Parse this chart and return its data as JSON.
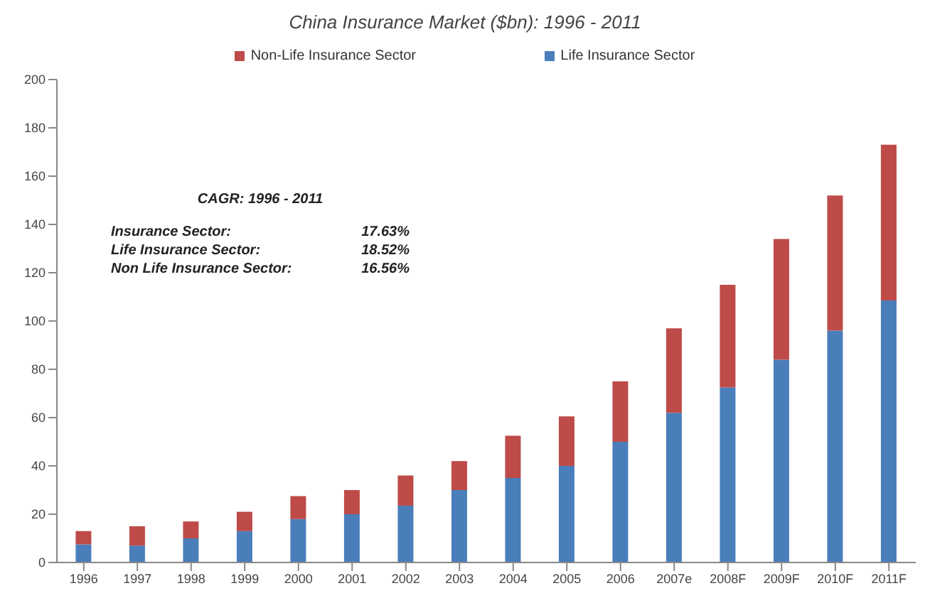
{
  "chart_data": {
    "type": "bar",
    "title": "China Insurance Market ($bn): 1996 - 2011",
    "categories": [
      "1996",
      "1997",
      "1998",
      "1999",
      "2000",
      "2001",
      "2002",
      "2003",
      "2004",
      "2005",
      "2006",
      "2007e",
      "2008F",
      "2009F",
      "2010F",
      "2011F"
    ],
    "series": [
      {
        "name": "Life Insurance Sector",
        "color": "#4a7ebb",
        "values": [
          7.5,
          7,
          10,
          13,
          18,
          20,
          23.5,
          30,
          35,
          40,
          50,
          62,
          72.5,
          84,
          96,
          108.5
        ]
      },
      {
        "name": "Non-Life Insurance Sector",
        "color": "#be4b48",
        "values": [
          5.5,
          8,
          7,
          8,
          9.5,
          10,
          12.5,
          12,
          17.5,
          20.5,
          25,
          35,
          42.5,
          50,
          56,
          64.5
        ]
      }
    ],
    "stacked": true,
    "ylim": [
      0,
      200
    ],
    "yticks": [
      0,
      20,
      40,
      60,
      80,
      100,
      120,
      140,
      160,
      180,
      200
    ],
    "grid": false,
    "legend": "top",
    "annotations": [
      "CAGR: 1996 - 2011",
      "Insurance Sector: 17.63%",
      "Life Insurance Sector: 18.52%",
      "Non Life Insurance Sector: 16.56%"
    ]
  }
}
